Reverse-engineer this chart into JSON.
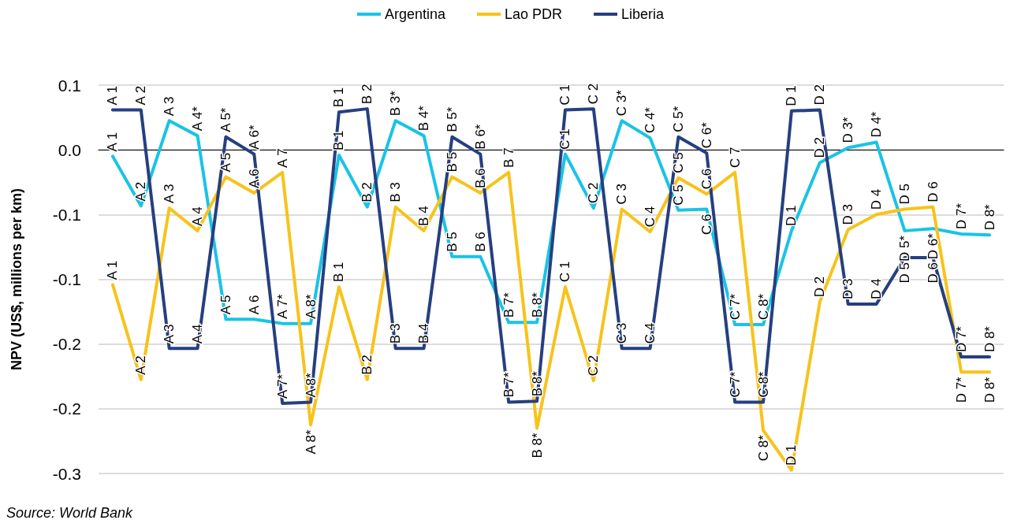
{
  "chart_data": {
    "type": "line",
    "ylabel": "NPV (US$, millions per km)",
    "annotations": [
      "Source: World Bank"
    ],
    "categories": [
      null,
      null,
      null,
      null,
      null,
      null,
      null,
      null,
      null,
      null,
      null,
      null,
      null,
      null,
      null,
      null,
      null,
      null,
      null,
      null,
      null,
      null,
      null,
      null,
      null,
      null,
      null,
      null,
      null,
      null,
      null,
      null
    ],
    "series": [
      {
        "name": "Argentina",
        "color": "#19c3e6",
        "values": [
          -0.006,
          -0.052,
          0.027,
          0.013,
          -0.157,
          -0.157,
          -0.161,
          -0.161,
          -0.005,
          -0.053,
          0.027,
          0.013,
          -0.099,
          -0.099,
          -0.16,
          -0.16,
          -0.004,
          -0.054,
          0.027,
          0.011,
          -0.056,
          -0.055,
          -0.162,
          -0.162,
          -0.075,
          -0.012,
          0.002,
          0.007,
          -0.075,
          -0.073,
          -0.078,
          -0.079
        ],
        "value_labels": [
          "A 1",
          "A 2",
          "A 3",
          "A 4*",
          "A 5",
          "A 6",
          "A 7*",
          "A 8*",
          "B 1",
          "B 2",
          "B 3*",
          "B 4*",
          "B 5",
          "B 6",
          "B 7*",
          "B 8*",
          "C 1",
          "C 2",
          "C 3*",
          "C 4*",
          "C 5",
          "C 6",
          "C 7*",
          "C 8*",
          "D 1",
          "D 2",
          "D 3*",
          "D 4*",
          "D 5*",
          "D 6*",
          "D 7*",
          "D 8*"
        ]
      },
      {
        "name": "Lao PDR",
        "color": "#f7c31b",
        "values": [
          -0.125,
          -0.213,
          -0.054,
          -0.075,
          -0.025,
          -0.04,
          -0.021,
          -0.255,
          -0.127,
          -0.213,
          -0.053,
          -0.075,
          -0.025,
          -0.04,
          -0.021,
          -0.258,
          -0.127,
          -0.214,
          -0.055,
          -0.076,
          -0.026,
          -0.041,
          -0.021,
          -0.26,
          -0.297,
          -0.141,
          -0.074,
          -0.06,
          -0.055,
          -0.053,
          -0.206,
          -0.206
        ],
        "value_labels": [
          "A 1",
          "A 2",
          "A 3",
          "A 4",
          "A 5",
          "A 6",
          "A 7",
          "A 8*",
          "B 1",
          "B 2",
          "B 3",
          "B 4",
          "B 5",
          "B 6",
          "B 7",
          "B 8*",
          "C 1",
          "C 2",
          "C 3",
          "C 4",
          "C 5",
          "C 6",
          "C 7",
          "C 8*",
          "D 1",
          "D 2",
          "D 3",
          "D 4",
          "D 5",
          "D 6",
          "D 7*",
          "D 8*"
        ]
      },
      {
        "name": "Liberia",
        "color": "#263f80",
        "values": [
          0.037,
          0.037,
          -0.184,
          -0.184,
          0.012,
          -0.004,
          -0.235,
          -0.234,
          0.035,
          0.038,
          -0.184,
          -0.184,
          0.012,
          -0.004,
          -0.234,
          -0.233,
          0.037,
          0.038,
          -0.184,
          -0.184,
          0.012,
          -0.003,
          -0.234,
          -0.234,
          0.036,
          0.037,
          -0.143,
          -0.143,
          -0.1,
          -0.1,
          -0.192,
          -0.192
        ],
        "value_labels": [
          "A 1",
          "A 2",
          "A 3",
          "A 4",
          "A 5*",
          "A 6*",
          "A 7*",
          "A 8*",
          "B 1",
          "B 2",
          "B 3",
          "B 4",
          "B 5*",
          "B 6*",
          "B 7*",
          "B 8*",
          "C 1",
          "C 2",
          "C 3",
          "C 4",
          "C 5*",
          "C 6*",
          "C 7*",
          "C 8*",
          "D 1",
          "D 2",
          "D 3",
          "D 4",
          "D 5",
          "D 6",
          "D 7*",
          "D 8*"
        ]
      }
    ],
    "ylim": [
      -0.3,
      0.06
    ],
    "yticks": [
      {
        "value": 0.06,
        "label": "0.1"
      },
      {
        "value": 0,
        "label": "0.0"
      },
      {
        "value": -0.06,
        "label": "-0.1"
      },
      {
        "value": -0.12,
        "label": "-0.1"
      },
      {
        "value": -0.18,
        "label": "-0.2"
      },
      {
        "value": -0.24,
        "label": "-0.2"
      },
      {
        "value": -0.3,
        "label": "-0.3"
      }
    ],
    "tick_labels": "y",
    "grid": "y",
    "legend": "top",
    "marker": "none",
    "line_style": "solid"
  }
}
